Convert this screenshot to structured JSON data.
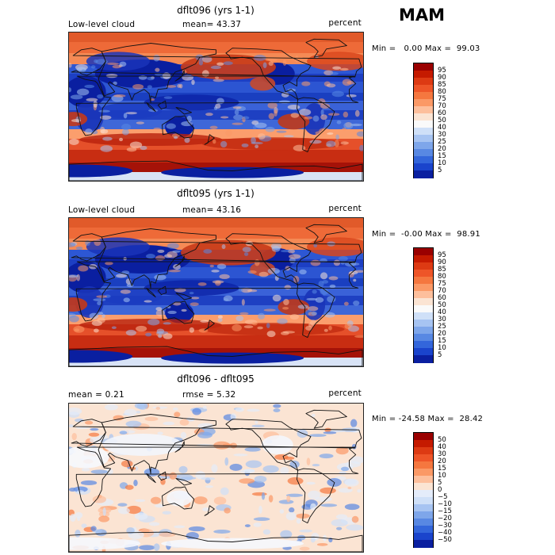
{
  "season": "MAM",
  "panels": [
    {
      "title": "dflt096 (yrs 1-1)",
      "left_label": "Low-level cloud",
      "mid_label": "mean=  43.37",
      "right_label": "percent",
      "minmax": "Min =   0.00 Max =  99.03",
      "kind": "abs"
    },
    {
      "title": "dflt095 (yrs 1-1)",
      "left_label": "Low-level cloud",
      "mid_label": "mean=  43.16",
      "right_label": "percent",
      "minmax": "Min =  -0.00 Max =  98.91",
      "kind": "abs"
    },
    {
      "title": "dflt096 - dflt095",
      "left_label": "mean =   0.21",
      "mid_label": "rmse =   5.32",
      "right_label": "percent",
      "minmax": "Min = -24.58 Max =  28.42",
      "kind": "diff"
    }
  ],
  "colorbars": {
    "abs": {
      "labels": [
        "95",
        "90",
        "85",
        "80",
        "75",
        "70",
        "60",
        "50",
        "40",
        "30",
        "25",
        "20",
        "15",
        "10",
        "5"
      ],
      "colors": [
        "#9a0000",
        "#c51a00",
        "#dd3a13",
        "#ee5528",
        "#f5773f",
        "#fb9966",
        "#fdbf9c",
        "#fbe4d3",
        "#fafafa",
        "#cfe0f8",
        "#a7c4f2",
        "#7ea6ea",
        "#5888e3",
        "#3366db",
        "#1a44cc",
        "#0a1fa0"
      ]
    },
    "diff": {
      "labels": [
        "50",
        "40",
        "30",
        "20",
        "15",
        "10",
        "5",
        "0",
        "−5",
        "−10",
        "−15",
        "−20",
        "−30",
        "−40",
        "−50"
      ],
      "colors": [
        "#9a0000",
        "#c51a00",
        "#dd3a13",
        "#ee5528",
        "#f5773f",
        "#fb9966",
        "#fdbf9c",
        "#fbe4d3",
        "#e4ecfa",
        "#cfe0f8",
        "#a7c4f2",
        "#7ea6ea",
        "#5888e3",
        "#3366db",
        "#1a44cc",
        "#0a1fa0"
      ]
    }
  }
}
